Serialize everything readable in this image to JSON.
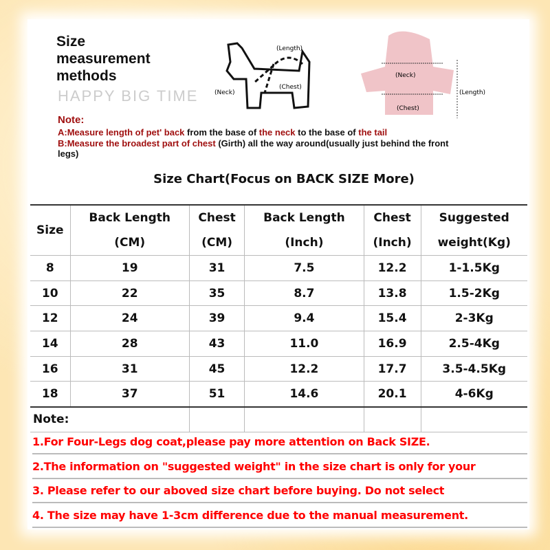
{
  "header": {
    "title_lines": [
      "Size",
      "measurement",
      "methods"
    ],
    "watermark": "HAPPY BIG TIME"
  },
  "diagram": {
    "dog_labels": [
      "(Length)",
      "(Neck)",
      "(Chest)"
    ],
    "coat_labels": [
      "(Neck)",
      "(Length)",
      "(Chest)"
    ]
  },
  "note": {
    "title": "Note:",
    "a": [
      "A:Measure ",
      "length of pet' back",
      " from the base of ",
      "the neck",
      " to the base of ",
      "the tail"
    ],
    "b": [
      "B:Measure ",
      "the broadest part of chest",
      " (Girth) all the way around(usually just behind the front legs)"
    ]
  },
  "colors": {
    "accent_red": "#a01010",
    "note_red": "#ff0000",
    "background": "#fde6b4"
  },
  "table": {
    "title": "Size Chart(Focus on BACK SIZE More)",
    "headers": [
      [
        "Size",
        ""
      ],
      [
        "Back Length",
        "(CM)"
      ],
      [
        "Chest",
        "(CM)"
      ],
      [
        "Back Length",
        "(Inch)"
      ],
      [
        "Chest",
        "(Inch)"
      ],
      [
        "Suggested",
        "weight(Kg)"
      ]
    ],
    "rows": [
      [
        "8",
        "19",
        "31",
        "7.5",
        "12.2",
        "1-1.5Kg"
      ],
      [
        "10",
        "22",
        "35",
        "8.7",
        "13.8",
        "1.5-2Kg"
      ],
      [
        "12",
        "24",
        "39",
        "9.4",
        "15.4",
        "2-3Kg"
      ],
      [
        "14",
        "28",
        "43",
        "11.0",
        "16.9",
        "2.5-4Kg"
      ],
      [
        "16",
        "31",
        "45",
        "12.2",
        "17.7",
        "3.5-4.5Kg"
      ],
      [
        "18",
        "37",
        "51",
        "14.6",
        "20.1",
        "4-6Kg"
      ]
    ],
    "note_label": "Note:"
  },
  "notes": [
    "1.For Four-Legs dog coat,please pay more attention on Back SIZE.",
    "2.The information on \"suggested weight\" in the size chart is only for your",
    "3. Please refer to our aboved size chart before buying. Do not select",
    "4. The size may have 1-3cm difference due to the manual measurement."
  ]
}
